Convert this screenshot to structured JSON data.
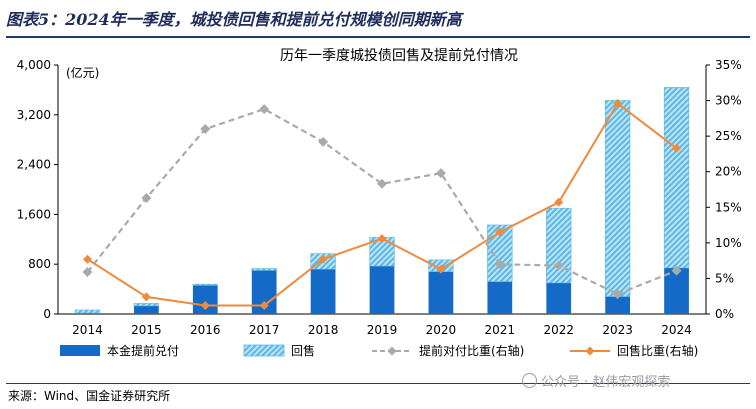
{
  "figure_title": "图表5：2024年一季度，城投债回售和提前兑付规模创同期新高",
  "source": "来源：Wind、国金证券研究所",
  "watermark": "公众号 · 赵伟宏观探索",
  "colors": {
    "principal": "#1569c7",
    "putback": "#59b9e6",
    "early_ratio": "#aaaaaa",
    "putback_ratio": "#f08a3c"
  },
  "chart_data": {
    "type": "bar",
    "stacked": true,
    "title": "历年一季度城投债回售及提前兑付情况",
    "y_unit": "(亿元)",
    "categories": [
      "2014",
      "2015",
      "2016",
      "2017",
      "2018",
      "2019",
      "2020",
      "2021",
      "2022",
      "2023",
      "2024"
    ],
    "ylim": [
      0,
      4000
    ],
    "yticks": [
      "0",
      "800",
      "1,600",
      "2,400",
      "3,200",
      "4,000"
    ],
    "y2lim": [
      0,
      35
    ],
    "y2ticks": [
      "0%",
      "5%",
      "10%",
      "15%",
      "20%",
      "25%",
      "30%",
      "35%"
    ],
    "series": [
      {
        "name": "本金提前兑付",
        "kind": "bar",
        "axis": "left",
        "values": [
          15,
          130,
          460,
          700,
          720,
          770,
          680,
          520,
          500,
          280,
          740
        ]
      },
      {
        "name": "回售",
        "kind": "bar",
        "axis": "left",
        "values": [
          50,
          40,
          20,
          30,
          250,
          460,
          190,
          910,
          1200,
          3150,
          2900
        ]
      },
      {
        "name": "提前对付比重(右轴)",
        "kind": "line",
        "style": "dashed",
        "axis": "right",
        "values": [
          5.9,
          16.3,
          26.0,
          28.8,
          24.2,
          18.3,
          19.8,
          7.0,
          6.8,
          2.8,
          6.1
        ]
      },
      {
        "name": "回售比重(右轴)",
        "kind": "line",
        "style": "solid",
        "axis": "right",
        "values": [
          7.7,
          2.4,
          1.2,
          1.2,
          7.7,
          10.6,
          6.3,
          11.5,
          15.7,
          29.6,
          23.3
        ]
      }
    ],
    "grid": false,
    "legend_position": "bottom"
  }
}
